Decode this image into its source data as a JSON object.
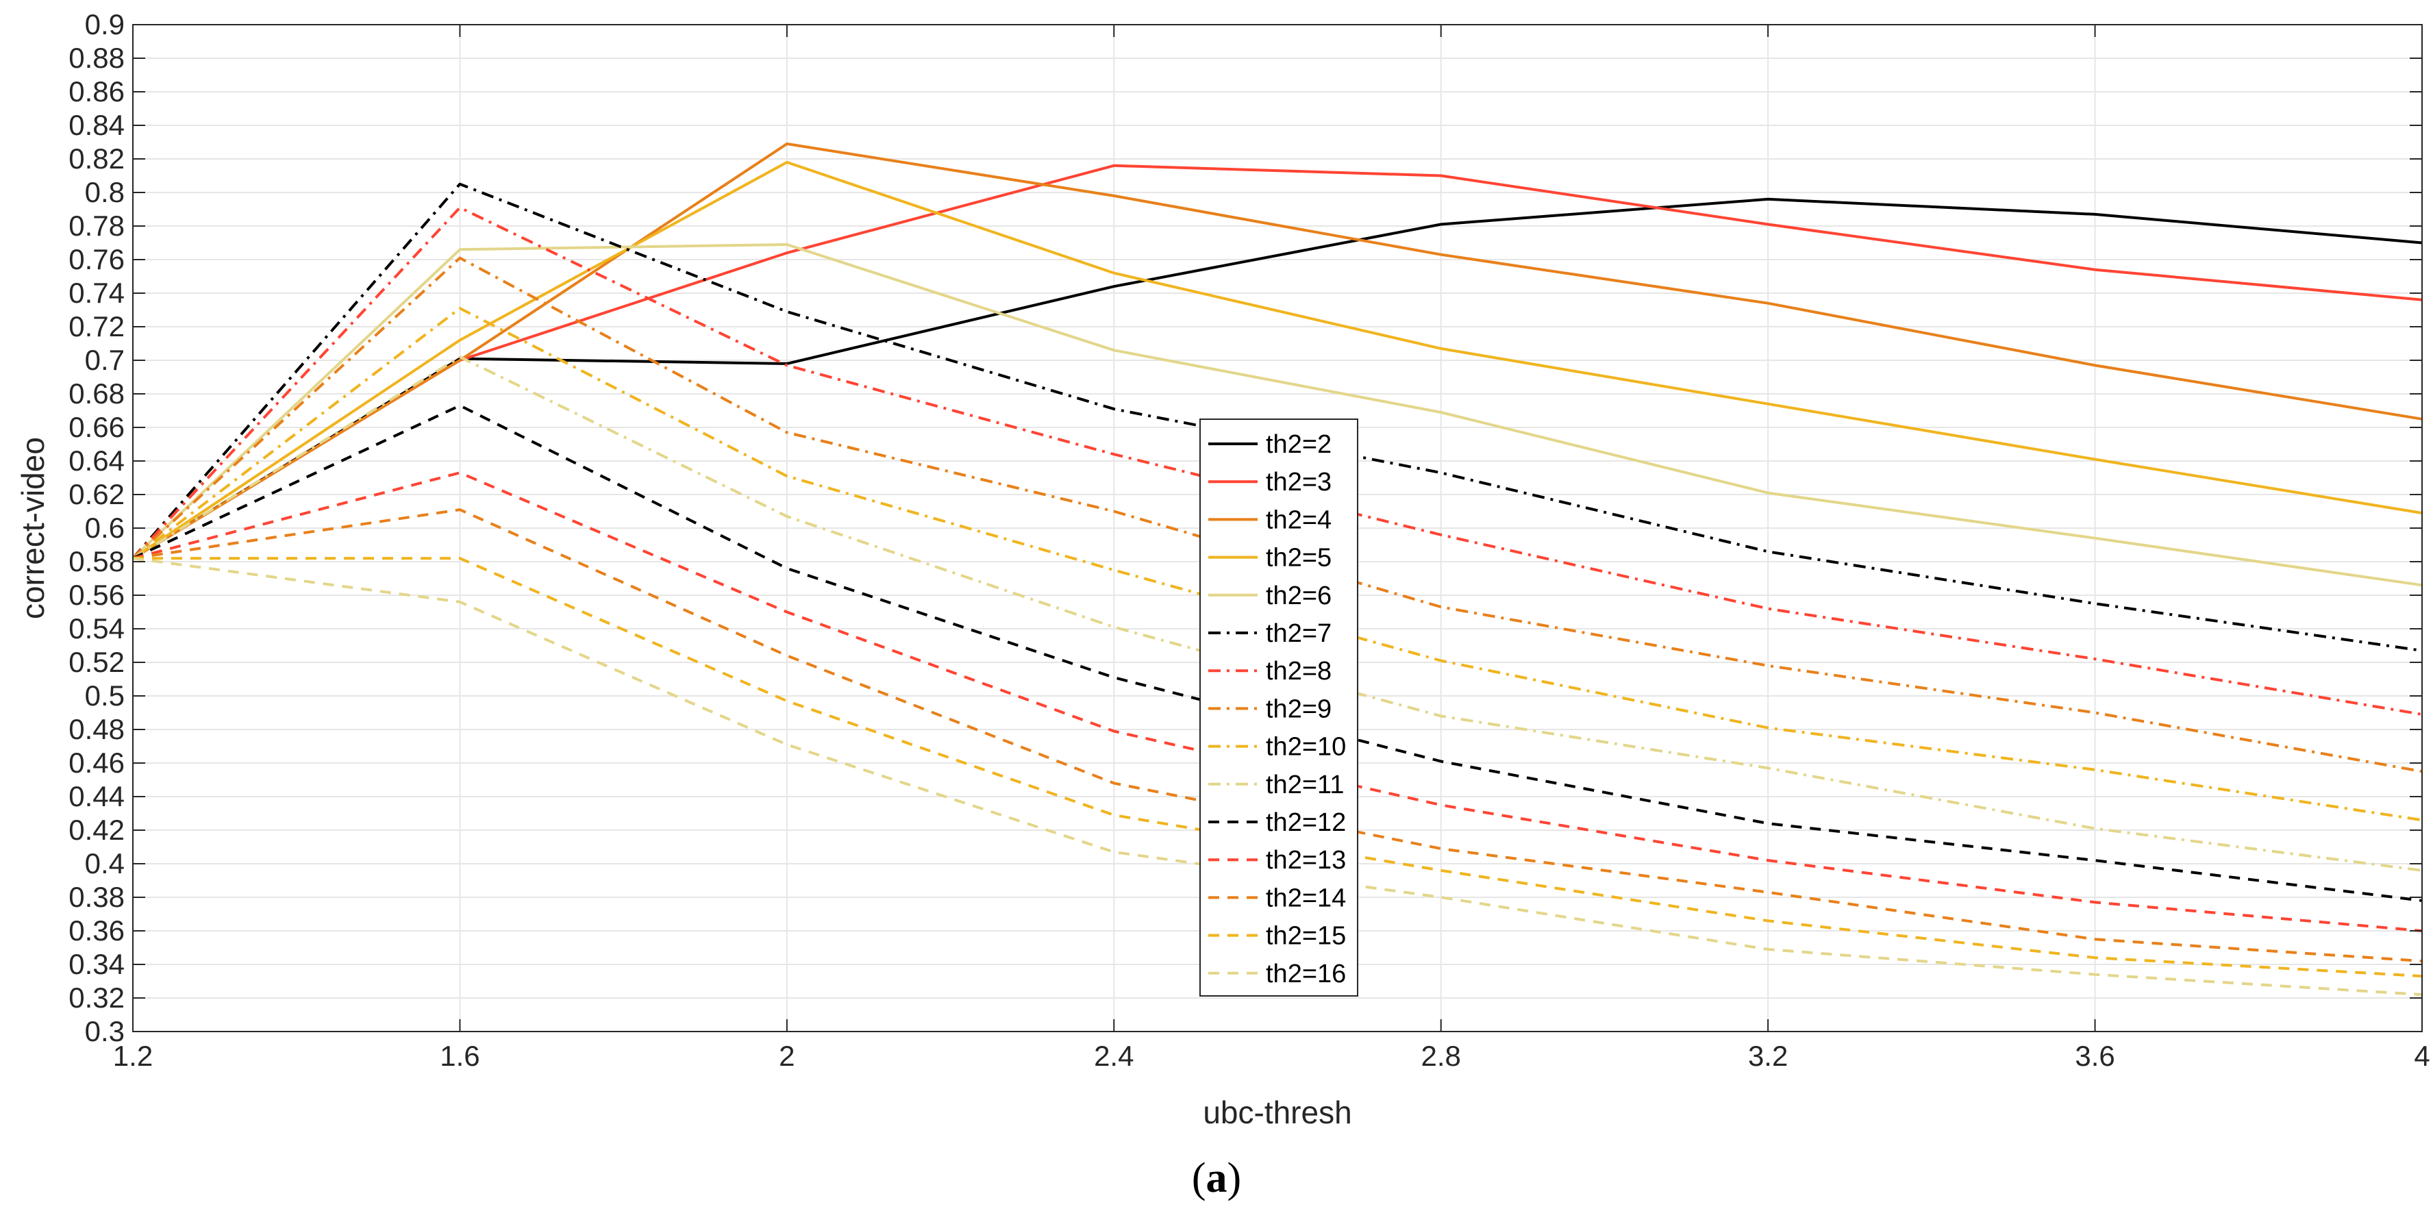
{
  "chart_data": {
    "type": "line",
    "xlabel": "ubc-thresh",
    "ylabel": "correct-video",
    "x": [
      1.2,
      1.6,
      2,
      2.4,
      2.8,
      3.2,
      3.6,
      4
    ],
    "xlim": [
      1.2,
      4
    ],
    "ylim": [
      0.3,
      0.9
    ],
    "xticks": [
      1.2,
      1.6,
      2,
      2.4,
      2.8,
      3.2,
      3.6,
      4
    ],
    "xtick_labels": [
      "1.2",
      "1.6",
      "2",
      "2.4",
      "2.8",
      "3.2",
      "3.6",
      "4"
    ],
    "yticks": [
      0.3,
      0.32,
      0.34,
      0.36,
      0.38,
      0.4,
      0.42,
      0.44,
      0.46,
      0.48,
      0.5,
      0.52,
      0.54,
      0.56,
      0.58,
      0.6,
      0.62,
      0.64,
      0.66,
      0.68,
      0.7,
      0.72,
      0.74,
      0.76,
      0.78,
      0.8,
      0.82,
      0.84,
      0.86,
      0.88,
      0.9
    ],
    "ytick_labels": [
      "0.3",
      "0.32",
      "0.34",
      "0.36",
      "0.38",
      "0.4",
      "0.42",
      "0.44",
      "0.46",
      "0.48",
      "0.5",
      "0.52",
      "0.54",
      "0.56",
      "0.58",
      "0.6",
      "0.62",
      "0.64",
      "0.66",
      "0.68",
      "0.7",
      "0.72",
      "0.74",
      "0.76",
      "0.78",
      "0.8",
      "0.82",
      "0.84",
      "0.86",
      "0.88",
      "0.9"
    ],
    "grid": true,
    "legend_position": "center",
    "series": [
      {
        "name": "th2=2",
        "color": "#000000",
        "style": "solid",
        "values": [
          0.582,
          0.701,
          0.698,
          0.744,
          0.781,
          0.796,
          0.787,
          0.77
        ]
      },
      {
        "name": "th2=3",
        "color": "#ff4433",
        "style": "solid",
        "values": [
          0.582,
          0.7,
          0.764,
          0.816,
          0.81,
          0.781,
          0.754,
          0.736
        ]
      },
      {
        "name": "th2=4",
        "color": "#e8801a",
        "style": "solid",
        "values": [
          0.582,
          0.7,
          0.829,
          0.798,
          0.763,
          0.734,
          0.697,
          0.665
        ]
      },
      {
        "name": "th2=5",
        "color": "#f0b41e",
        "style": "solid",
        "values": [
          0.582,
          0.712,
          0.818,
          0.752,
          0.707,
          0.674,
          0.641,
          0.609
        ]
      },
      {
        "name": "th2=6",
        "color": "#e3d68a",
        "style": "solid",
        "values": [
          0.582,
          0.766,
          0.769,
          0.706,
          0.669,
          0.621,
          0.594,
          0.566
        ]
      },
      {
        "name": "th2=7",
        "color": "#000000",
        "style": "dashdot",
        "values": [
          0.582,
          0.805,
          0.729,
          0.671,
          0.633,
          0.586,
          0.555,
          0.527
        ]
      },
      {
        "name": "th2=8",
        "color": "#ff4433",
        "style": "dashdot",
        "values": [
          0.582,
          0.791,
          0.697,
          0.644,
          0.596,
          0.552,
          0.522,
          0.489
        ]
      },
      {
        "name": "th2=9",
        "color": "#e8801a",
        "style": "dashdot",
        "values": [
          0.582,
          0.761,
          0.657,
          0.61,
          0.553,
          0.518,
          0.49,
          0.455
        ]
      },
      {
        "name": "th2=10",
        "color": "#f0b41e",
        "style": "dashdot",
        "values": [
          0.582,
          0.731,
          0.631,
          0.575,
          0.521,
          0.481,
          0.456,
          0.426
        ]
      },
      {
        "name": "th2=11",
        "color": "#e3d68a",
        "style": "dashdot",
        "values": [
          0.582,
          0.702,
          0.607,
          0.541,
          0.488,
          0.457,
          0.421,
          0.396
        ]
      },
      {
        "name": "th2=12",
        "color": "#000000",
        "style": "dashed",
        "values": [
          0.582,
          0.673,
          0.576,
          0.511,
          0.461,
          0.424,
          0.402,
          0.378
        ]
      },
      {
        "name": "th2=13",
        "color": "#ff4433",
        "style": "dashed",
        "values": [
          0.582,
          0.633,
          0.55,
          0.479,
          0.435,
          0.402,
          0.377,
          0.36
        ]
      },
      {
        "name": "th2=14",
        "color": "#e8801a",
        "style": "dashed",
        "values": [
          0.582,
          0.611,
          0.524,
          0.448,
          0.409,
          0.383,
          0.355,
          0.342
        ]
      },
      {
        "name": "th2=15",
        "color": "#f0b41e",
        "style": "dashed",
        "values": [
          0.582,
          0.582,
          0.497,
          0.429,
          0.396,
          0.366,
          0.344,
          0.333
        ]
      },
      {
        "name": "th2=16",
        "color": "#e3d68a",
        "style": "dashed",
        "values": [
          0.582,
          0.556,
          0.471,
          0.407,
          0.38,
          0.349,
          0.334,
          0.322
        ]
      }
    ]
  },
  "caption": {
    "open": "(",
    "letter": "a",
    "close": ")"
  }
}
